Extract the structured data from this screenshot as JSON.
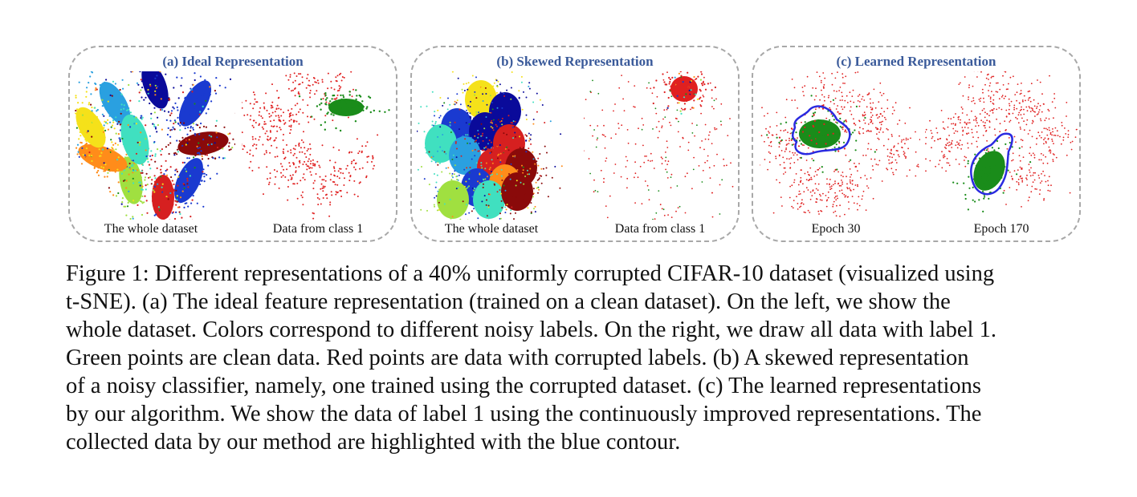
{
  "figure": {
    "panels": [
      {
        "id": "a",
        "title": "(a) Ideal Representation",
        "left_label": "The whole dataset",
        "right_label": "Data from class 1"
      },
      {
        "id": "b",
        "title": "(b) Skewed Representation",
        "left_label": "The whole dataset",
        "right_label": "Data from class 1"
      },
      {
        "id": "c",
        "title": "(c) Learned Representation",
        "left_label": "Epoch 30",
        "right_label": "Epoch 170"
      }
    ],
    "colors": {
      "title": "#3a5a9a",
      "clean": "#1a8c1a",
      "corrupted": "#e02020",
      "contour": "#2a2ae0",
      "border": "#a8a8a8",
      "classes": [
        "#d62020",
        "#ff8c1a",
        "#f5e11a",
        "#2aa0e0",
        "#1a3ad0",
        "#0a0a9a",
        "#8a0a0a",
        "#40e0c0",
        "#a0e040",
        "#1a8c1a"
      ]
    },
    "caption_lines": [
      "Figure 1: Different representations of a 40% uniformly corrupted CIFAR-10 dataset (visualized using",
      "t-SNE). (a) The ideal feature representation (trained on a clean dataset). On the left, we show the",
      "whole dataset. Colors correspond to different noisy labels. On the right, we draw all data with label 1.",
      "Green points are clean data. Red points are data with corrupted labels. (b) A skewed representation",
      "of a noisy classifier, namely, one trained using the corrupted dataset. (c) The learned representations",
      "by our algorithm. We show the data of label 1 using the continuously improved representations. The",
      "collected data by our method are highlighted with the blue contour."
    ]
  }
}
